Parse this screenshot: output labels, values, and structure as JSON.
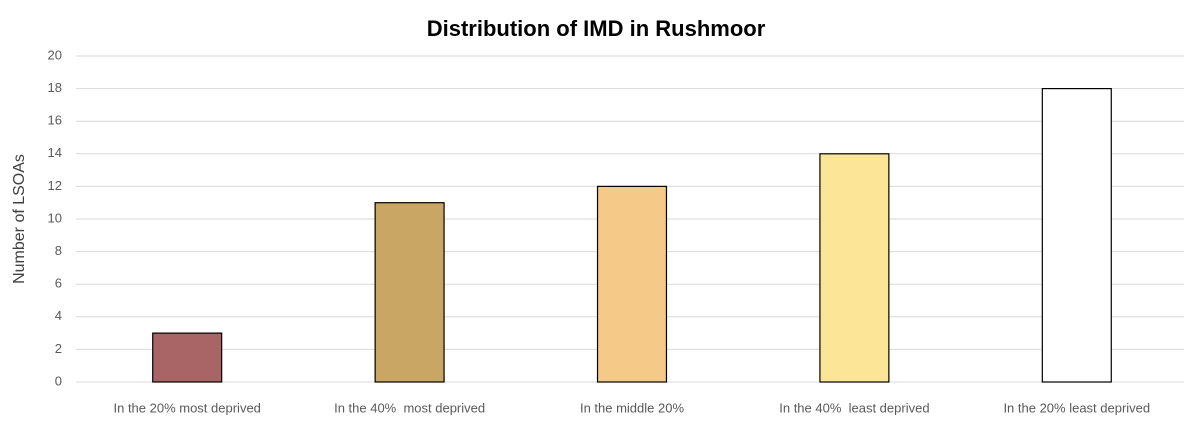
{
  "chart_data": {
    "type": "bar",
    "title": "Distribution of IMD in Rushmoor",
    "y_label": "Number of LSOAs",
    "categories": [
      "In the 20% most deprived",
      "In the 40%  most deprived",
      "In the middle 20%",
      "In the 40%  least deprived",
      "In the 20% least deprived"
    ],
    "values": [
      3,
      11,
      12,
      14,
      18
    ],
    "colors": [
      "#a96565",
      "#c9a664",
      "#f5c987",
      "#fde598",
      "#ffffff"
    ],
    "ylim": [
      0,
      20
    ],
    "yticks": [
      0,
      2,
      4,
      6,
      8,
      10,
      12,
      14,
      16,
      18,
      20
    ],
    "grid": true
  }
}
